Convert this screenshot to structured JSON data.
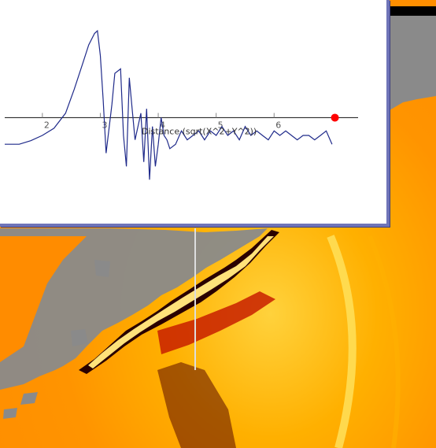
{
  "plot": {
    "axis_label": "Distance (sqrt(X^2+Y^2))",
    "x_ticks": [
      "2",
      "3",
      "4",
      "5",
      "6"
    ],
    "marker_color": "#ff0000",
    "line_color": "#1f2a8a",
    "panel_border_color": "#6f74b8"
  },
  "chart_data": {
    "type": "line",
    "xlabel": "Distance (sqrt(X^2+Y^2))",
    "x_ticks": [
      2,
      3,
      4,
      5,
      6
    ],
    "xlim": [
      1.35,
      7.45
    ],
    "ylim": [
      -1.0,
      1.15
    ],
    "series": [
      {
        "x": [
          1.35,
          1.6,
          1.8,
          2.0,
          2.2,
          2.4,
          2.55,
          2.7,
          2.8,
          2.9,
          2.95,
          3.0,
          3.05,
          3.1,
          3.2,
          3.25,
          3.35,
          3.4,
          3.45,
          3.5,
          3.55,
          3.6,
          3.7,
          3.75,
          3.8,
          3.85,
          3.9,
          3.95,
          4.0,
          4.05,
          4.1,
          4.15,
          4.2,
          4.3,
          4.4,
          4.5,
          4.6,
          4.7,
          4.8,
          4.9,
          5.0,
          5.1,
          5.2,
          5.3,
          5.4,
          5.5,
          5.6,
          5.7,
          5.8,
          5.9,
          6.0,
          6.1,
          6.2,
          6.3,
          6.4,
          6.5,
          6.6,
          6.7,
          6.8,
          6.9,
          7.0
        ],
        "y": [
          -0.3,
          -0.3,
          -0.26,
          -0.2,
          -0.12,
          0.05,
          0.32,
          0.62,
          0.82,
          0.95,
          0.98,
          0.7,
          0.2,
          -0.4,
          0.15,
          0.5,
          0.55,
          -0.2,
          -0.55,
          0.45,
          0.1,
          -0.25,
          0.05,
          -0.5,
          0.1,
          -0.7,
          -0.1,
          -0.55,
          -0.3,
          0.0,
          -0.2,
          -0.25,
          -0.35,
          -0.3,
          -0.15,
          -0.25,
          -0.2,
          -0.15,
          -0.25,
          -0.15,
          -0.2,
          -0.1,
          -0.2,
          -0.15,
          -0.25,
          -0.1,
          -0.2,
          -0.15,
          -0.2,
          -0.25,
          -0.15,
          -0.2,
          -0.15,
          -0.2,
          -0.25,
          -0.2,
          -0.2,
          -0.25,
          -0.2,
          -0.15,
          -0.3
        ]
      }
    ],
    "marker": {
      "x": 7.05,
      "y": 0.0
    },
    "grid": false
  },
  "scene": {
    "land_color": "#8a8a8a",
    "ocean_color": "#ff9400",
    "top_right_bar_color": "#000000"
  }
}
